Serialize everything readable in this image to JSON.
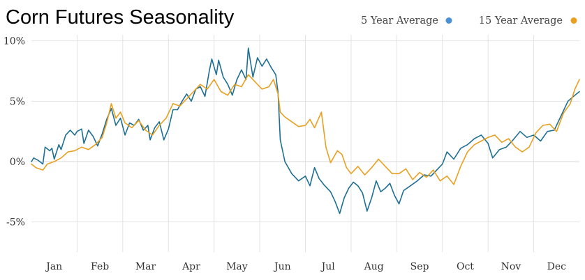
{
  "chart_data": {
    "type": "line",
    "title": "Corn Futures Seasonality",
    "xlabel": "",
    "ylabel": "",
    "ylim": [
      -7.5,
      10.5
    ],
    "xlim": [
      0,
      12
    ],
    "grid": true,
    "legend_position": "top-right",
    "months": [
      "Jan",
      "Feb",
      "Mar",
      "Apr",
      "May",
      "Jun",
      "Jul",
      "Aug",
      "Sep",
      "Oct",
      "Nov",
      "Dec"
    ],
    "y_ticks": [
      {
        "value": 10,
        "label": "10%"
      },
      {
        "value": 5,
        "label": "5%"
      },
      {
        "value": 0,
        "label": "0%"
      },
      {
        "value": -5,
        "label": "-5%"
      }
    ],
    "series": [
      {
        "name": "5 Year Average",
        "color": "#1d6f93",
        "legend_marker_color": "#4a90d9",
        "points": [
          [
            0.0,
            0.0
          ],
          [
            0.05,
            0.3
          ],
          [
            0.15,
            0.1
          ],
          [
            0.25,
            -0.2
          ],
          [
            0.3,
            1.2
          ],
          [
            0.4,
            0.9
          ],
          [
            0.45,
            1.1
          ],
          [
            0.5,
            0.2
          ],
          [
            0.6,
            1.4
          ],
          [
            0.65,
            1.0
          ],
          [
            0.75,
            2.2
          ],
          [
            0.85,
            2.6
          ],
          [
            0.95,
            2.2
          ],
          [
            1.0,
            2.5
          ],
          [
            1.1,
            2.7
          ],
          [
            1.15,
            1.5
          ],
          [
            1.25,
            2.6
          ],
          [
            1.35,
            2.1
          ],
          [
            1.45,
            1.3
          ],
          [
            1.55,
            2.3
          ],
          [
            1.65,
            3.5
          ],
          [
            1.75,
            4.4
          ],
          [
            1.85,
            3.0
          ],
          [
            1.95,
            3.6
          ],
          [
            2.05,
            2.2
          ],
          [
            2.15,
            3.2
          ],
          [
            2.25,
            3.0
          ],
          [
            2.35,
            3.5
          ],
          [
            2.45,
            2.6
          ],
          [
            2.55,
            3.0
          ],
          [
            2.6,
            1.8
          ],
          [
            2.7,
            2.8
          ],
          [
            2.8,
            3.3
          ],
          [
            2.9,
            1.8
          ],
          [
            3.0,
            2.7
          ],
          [
            3.1,
            4.3
          ],
          [
            3.2,
            4.3
          ],
          [
            3.3,
            5.0
          ],
          [
            3.4,
            5.6
          ],
          [
            3.5,
            5.0
          ],
          [
            3.6,
            6.0
          ],
          [
            3.7,
            6.2
          ],
          [
            3.8,
            5.4
          ],
          [
            3.9,
            7.6
          ],
          [
            3.95,
            8.5
          ],
          [
            4.05,
            7.2
          ],
          [
            4.1,
            8.4
          ],
          [
            4.2,
            7.0
          ],
          [
            4.3,
            6.4
          ],
          [
            4.4,
            5.5
          ],
          [
            4.5,
            6.8
          ],
          [
            4.6,
            7.6
          ],
          [
            4.7,
            6.8
          ],
          [
            4.75,
            9.4
          ],
          [
            4.85,
            7.0
          ],
          [
            4.95,
            8.6
          ],
          [
            5.05,
            7.9
          ],
          [
            5.15,
            8.5
          ],
          [
            5.25,
            7.8
          ],
          [
            5.35,
            7.2
          ],
          [
            5.4,
            5.7
          ],
          [
            5.45,
            1.8
          ],
          [
            5.55,
            0.0
          ],
          [
            5.7,
            -1.0
          ],
          [
            5.85,
            -1.6
          ],
          [
            6.0,
            -1.2
          ],
          [
            6.1,
            -2.0
          ],
          [
            6.2,
            -0.5
          ],
          [
            6.3,
            -1.4
          ],
          [
            6.4,
            -1.9
          ],
          [
            6.55,
            -2.5
          ],
          [
            6.65,
            -3.3
          ],
          [
            6.75,
            -4.3
          ],
          [
            6.85,
            -3.0
          ],
          [
            6.95,
            -2.2
          ],
          [
            7.05,
            -1.7
          ],
          [
            7.15,
            -2.0
          ],
          [
            7.25,
            -2.6
          ],
          [
            7.35,
            -4.1
          ],
          [
            7.45,
            -3.0
          ],
          [
            7.55,
            -1.6
          ],
          [
            7.65,
            -2.5
          ],
          [
            7.75,
            -2.2
          ],
          [
            7.85,
            -1.8
          ],
          [
            7.95,
            -2.8
          ],
          [
            8.05,
            -3.5
          ],
          [
            8.15,
            -2.4
          ],
          [
            8.3,
            -2.0
          ],
          [
            8.45,
            -1.6
          ],
          [
            8.6,
            -1.1
          ],
          [
            8.75,
            -1.2
          ],
          [
            8.9,
            -0.6
          ],
          [
            9.0,
            -0.2
          ],
          [
            9.1,
            0.8
          ],
          [
            9.25,
            0.2
          ],
          [
            9.4,
            1.1
          ],
          [
            9.55,
            1.4
          ],
          [
            9.7,
            1.9
          ],
          [
            9.85,
            2.2
          ],
          [
            10.0,
            1.5
          ],
          [
            10.1,
            0.3
          ],
          [
            10.25,
            1.0
          ],
          [
            10.4,
            1.2
          ],
          [
            10.55,
            1.8
          ],
          [
            10.7,
            2.5
          ],
          [
            10.85,
            2.0
          ],
          [
            11.0,
            2.2
          ],
          [
            11.15,
            1.7
          ],
          [
            11.3,
            2.5
          ],
          [
            11.45,
            2.6
          ],
          [
            11.6,
            3.8
          ],
          [
            11.75,
            5.0
          ],
          [
            11.9,
            5.5
          ],
          [
            12.0,
            5.8
          ]
        ]
      },
      {
        "name": "15 Year Average",
        "color": "#e8a020",
        "legend_marker_color": "#e8a020",
        "points": [
          [
            0.0,
            -0.2
          ],
          [
            0.1,
            -0.5
          ],
          [
            0.25,
            -0.7
          ],
          [
            0.35,
            -0.2
          ],
          [
            0.5,
            0.0
          ],
          [
            0.65,
            0.3
          ],
          [
            0.8,
            0.8
          ],
          [
            0.95,
            0.9
          ],
          [
            1.1,
            1.2
          ],
          [
            1.25,
            1.0
          ],
          [
            1.4,
            1.4
          ],
          [
            1.55,
            2.0
          ],
          [
            1.65,
            3.2
          ],
          [
            1.75,
            4.8
          ],
          [
            1.85,
            3.6
          ],
          [
            1.95,
            4.1
          ],
          [
            2.05,
            3.2
          ],
          [
            2.2,
            2.8
          ],
          [
            2.35,
            3.4
          ],
          [
            2.5,
            2.6
          ],
          [
            2.65,
            2.2
          ],
          [
            2.8,
            3.0
          ],
          [
            2.95,
            3.6
          ],
          [
            3.1,
            4.8
          ],
          [
            3.25,
            4.6
          ],
          [
            3.4,
            5.2
          ],
          [
            3.55,
            5.8
          ],
          [
            3.7,
            6.4
          ],
          [
            3.85,
            6.0
          ],
          [
            4.0,
            6.8
          ],
          [
            4.15,
            5.8
          ],
          [
            4.3,
            5.5
          ],
          [
            4.45,
            6.4
          ],
          [
            4.6,
            6.2
          ],
          [
            4.75,
            7.2
          ],
          [
            4.9,
            6.6
          ],
          [
            5.05,
            6.0
          ],
          [
            5.2,
            6.2
          ],
          [
            5.3,
            6.8
          ],
          [
            5.4,
            5.6
          ],
          [
            5.45,
            4.1
          ],
          [
            5.55,
            3.7
          ],
          [
            5.7,
            3.3
          ],
          [
            5.85,
            2.9
          ],
          [
            6.0,
            3.0
          ],
          [
            6.1,
            3.5
          ],
          [
            6.2,
            2.8
          ],
          [
            6.35,
            4.1
          ],
          [
            6.45,
            1.2
          ],
          [
            6.55,
            -0.1
          ],
          [
            6.7,
            0.9
          ],
          [
            6.8,
            0.6
          ],
          [
            6.9,
            -0.5
          ],
          [
            7.0,
            -1.0
          ],
          [
            7.15,
            -0.4
          ],
          [
            7.3,
            -1.1
          ],
          [
            7.45,
            -0.5
          ],
          [
            7.6,
            0.2
          ],
          [
            7.75,
            -0.4
          ],
          [
            7.9,
            -1.0
          ],
          [
            8.05,
            -1.0
          ],
          [
            8.2,
            -0.6
          ],
          [
            8.35,
            -1.5
          ],
          [
            8.5,
            -0.9
          ],
          [
            8.65,
            -1.3
          ],
          [
            8.8,
            -0.7
          ],
          [
            8.95,
            -1.6
          ],
          [
            9.1,
            -1.2
          ],
          [
            9.25,
            -1.9
          ],
          [
            9.4,
            -0.4
          ],
          [
            9.55,
            0.8
          ],
          [
            9.7,
            1.4
          ],
          [
            9.85,
            1.7
          ],
          [
            10.0,
            2.0
          ],
          [
            10.15,
            2.2
          ],
          [
            10.3,
            1.6
          ],
          [
            10.45,
            1.9
          ],
          [
            10.6,
            1.2
          ],
          [
            10.75,
            0.8
          ],
          [
            10.9,
            1.2
          ],
          [
            11.05,
            2.4
          ],
          [
            11.2,
            3.0
          ],
          [
            11.35,
            3.1
          ],
          [
            11.5,
            2.5
          ],
          [
            11.65,
            4.0
          ],
          [
            11.8,
            4.8
          ],
          [
            11.9,
            6.0
          ],
          [
            12.0,
            6.8
          ]
        ]
      }
    ]
  }
}
